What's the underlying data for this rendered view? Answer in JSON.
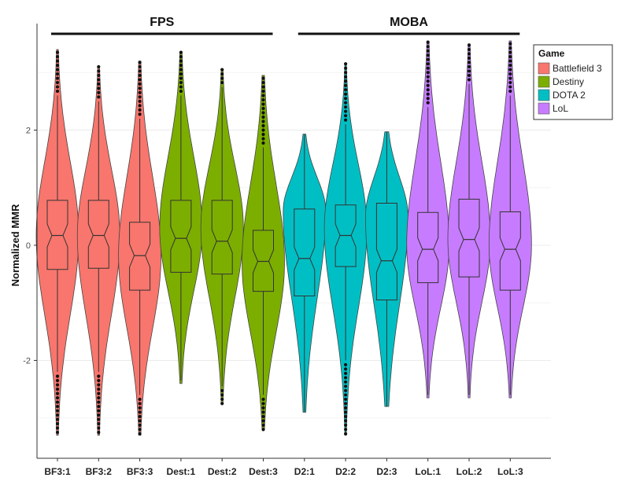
{
  "chart_data": {
    "type": "violin",
    "ylabel": "Normalized MMR",
    "ylim": [
      -3.7,
      3.85
    ],
    "yticks": [
      -2,
      0,
      2
    ],
    "grid": true,
    "legend_placement": "top-right",
    "legend_title": "Game",
    "groups": [
      {
        "label": "FPS",
        "categories": [
          0,
          5
        ]
      },
      {
        "label": "MOBA",
        "categories": [
          6,
          11
        ]
      }
    ],
    "series": [
      {
        "name": "Battlefield 3",
        "color": "#F8766D"
      },
      {
        "name": "Destiny",
        "color": "#7CAE00"
      },
      {
        "name": "DOTA 2",
        "color": "#00BFC4"
      },
      {
        "name": "LoL",
        "color": "#C77CFF"
      }
    ],
    "categories": [
      {
        "label": "BF3:1",
        "series": 0,
        "min": -3.3,
        "max": 3.4,
        "q1": -0.42,
        "median": 0.17,
        "q3": 0.78,
        "wlo": -2.2,
        "whi": 2.6,
        "peak": 0.17,
        "shape": 0.95
      },
      {
        "label": "BF3:2",
        "series": 0,
        "min": -3.3,
        "max": 3.1,
        "q1": -0.4,
        "median": 0.17,
        "q3": 0.78,
        "wlo": -2.2,
        "whi": 2.5,
        "peak": 0.17,
        "shape": 0.95
      },
      {
        "label": "BF3:3",
        "series": 0,
        "min": -3.3,
        "max": 3.2,
        "q1": -0.78,
        "median": -0.18,
        "q3": 0.4,
        "wlo": -2.6,
        "whi": 2.2,
        "peak": -0.18,
        "shape": 0.9
      },
      {
        "label": "Dest:1",
        "series": 1,
        "min": -2.4,
        "max": 3.35,
        "q1": -0.47,
        "median": 0.12,
        "q3": 0.78,
        "wlo": -2.35,
        "whi": 2.6,
        "peak": 0.3,
        "shape": 0.9
      },
      {
        "label": "Dest:2",
        "series": 1,
        "min": -2.75,
        "max": 3.05,
        "q1": -0.5,
        "median": 0.07,
        "q3": 0.78,
        "wlo": -2.45,
        "whi": 2.75,
        "peak": 0.3,
        "shape": 0.95
      },
      {
        "label": "Dest:3",
        "series": 1,
        "min": -3.2,
        "max": 2.95,
        "q1": -0.8,
        "median": -0.28,
        "q3": 0.26,
        "wlo": -2.6,
        "whi": 1.7,
        "peak": -0.3,
        "shape": 0.85
      },
      {
        "label": "D2:1",
        "series": 2,
        "min": -2.9,
        "max": 1.93,
        "q1": -0.88,
        "median": -0.23,
        "q3": 0.63,
        "wlo": -2.9,
        "whi": 1.93,
        "peak": 0.6,
        "shape": 0.8
      },
      {
        "label": "D2:2",
        "series": 2,
        "min": -3.3,
        "max": 3.15,
        "q1": -0.37,
        "median": 0.17,
        "q3": 0.7,
        "wlo": -2.0,
        "whi": 2.1,
        "peak": 0.3,
        "shape": 1.0
      },
      {
        "label": "D2:3",
        "series": 2,
        "min": -2.8,
        "max": 1.97,
        "q1": -0.95,
        "median": -0.27,
        "q3": 0.73,
        "wlo": -2.8,
        "whi": 1.97,
        "peak": 0.5,
        "shape": 0.7
      },
      {
        "label": "LoL:1",
        "series": 3,
        "min": -2.65,
        "max": 3.55,
        "q1": -0.65,
        "median": -0.07,
        "q3": 0.57,
        "wlo": -2.6,
        "whi": 2.4,
        "peak": 0.0,
        "shape": 0.9
      },
      {
        "label": "LoL:2",
        "series": 3,
        "min": -2.65,
        "max": 3.5,
        "q1": -0.55,
        "median": 0.1,
        "q3": 0.8,
        "wlo": -2.6,
        "whi": 2.8,
        "peak": 0.1,
        "shape": 0.95
      },
      {
        "label": "LoL:3",
        "series": 3,
        "min": -2.65,
        "max": 3.55,
        "q1": -0.78,
        "median": -0.07,
        "q3": 0.58,
        "wlo": -2.6,
        "whi": 2.6,
        "peak": 0.0,
        "shape": 0.9
      }
    ]
  }
}
